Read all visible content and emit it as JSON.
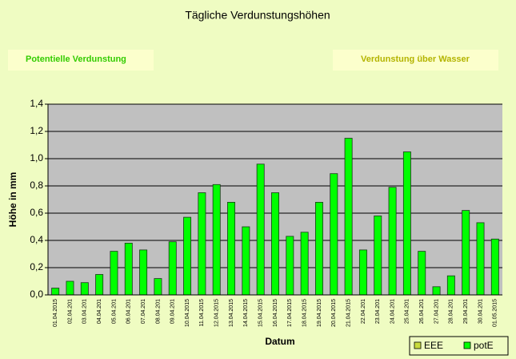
{
  "chart_data": {
    "type": "bar",
    "title": "Tägliche Verdunstungshöhen",
    "annotations": [
      "Potentielle Verdunstung",
      "Verdunstung über Wasser"
    ],
    "x_label": "Datum",
    "y_label": "Höhe in mm",
    "categories": [
      "01.04.2015",
      "02.04.201",
      "03.04.201",
      "04.04.201",
      "05.04.201",
      "06.04.201",
      "07.04.201",
      "08.04.201",
      "09.04.201",
      "10.04.2015",
      "11.04.2015",
      "12.04.2015",
      "13.04.2015",
      "14.04.2015",
      "15.04.2015",
      "16.04.2015",
      "17.04.2015",
      "18.04.2015",
      "19.04.2015",
      "20.04.2015",
      "21.04.2015",
      "22.04.201",
      "23.04.201",
      "24.04.201",
      "25.04.201",
      "26.04.201",
      "27.04.201",
      "28.04.201",
      "29.04.201",
      "30.04.201",
      "01.05.2015"
    ],
    "series": [
      {
        "name": "EEE",
        "color": "#c8dc3c",
        "values": [
          null,
          null,
          null,
          null,
          null,
          null,
          null,
          null,
          null,
          null,
          null,
          null,
          null,
          null,
          null,
          null,
          null,
          null,
          null,
          null,
          null,
          null,
          null,
          null,
          null,
          null,
          null,
          null,
          null,
          null,
          null
        ]
      },
      {
        "name": "potE",
        "color": "#00ff00",
        "values": [
          0.05,
          0.1,
          0.09,
          0.15,
          0.32,
          0.38,
          0.33,
          0.12,
          0.39,
          0.57,
          0.75,
          0.81,
          0.68,
          0.5,
          0.96,
          0.75,
          0.43,
          0.46,
          0.68,
          0.89,
          1.15,
          0.33,
          0.58,
          0.79,
          1.05,
          0.32,
          0.06,
          0.14,
          0.62,
          0.53,
          0.41
        ]
      }
    ],
    "ylim": [
      0,
      1.4
    ],
    "yticks": [
      {
        "value": 0,
        "label": "0,0"
      },
      {
        "value": 0.2,
        "label": "0,2"
      },
      {
        "value": 0.4,
        "label": "0,4"
      },
      {
        "value": 0.6,
        "label": "0,6"
      },
      {
        "value": 0.8,
        "label": "0,8"
      },
      {
        "value": 1.0,
        "label": "1,0"
      },
      {
        "value": 1.2,
        "label": "1,2"
      },
      {
        "value": 1.4,
        "label": "1,4"
      }
    ],
    "grid": true,
    "legend": "bottom-right"
  }
}
